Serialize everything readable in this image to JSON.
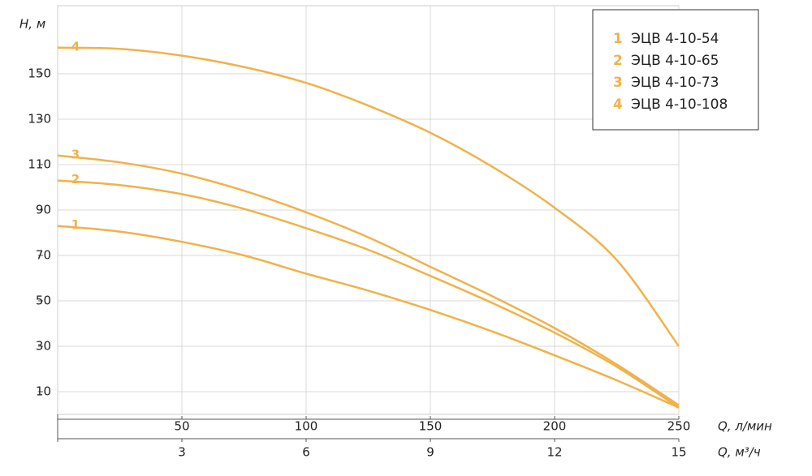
{
  "chart_data": {
    "type": "line",
    "y_label": "H, м",
    "x_label": "Q, л/мин",
    "x2_label": "Q, м³/ч",
    "x": [
      0,
      25,
      50,
      75,
      100,
      125,
      150,
      175,
      200,
      225,
      250
    ],
    "xlim": [
      0,
      250
    ],
    "xticks": [
      50,
      100,
      150,
      200,
      250
    ],
    "x2lim": [
      0,
      15
    ],
    "x2ticks": [
      3,
      6,
      9,
      12,
      15
    ],
    "ylim": [
      0,
      180
    ],
    "yticks": [
      10,
      30,
      50,
      70,
      90,
      110,
      130,
      150
    ],
    "grid": true,
    "legend": "upper right",
    "series": [
      {
        "label": "1",
        "name": "ЭЦВ 4-10-54",
        "color": "#f0b24a",
        "values": [
          83,
          80.5,
          76,
          70,
          62,
          54.5,
          46,
          36.5,
          26,
          15,
          3
        ]
      },
      {
        "label": "2",
        "name": "ЭЦВ 4-10-65",
        "color": "#f0b24a",
        "values": [
          103,
          101,
          97,
          90.5,
          82,
          72.5,
          61,
          49,
          36,
          21,
          3
        ]
      },
      {
        "label": "3",
        "name": "ЭЦВ 4-10-73",
        "color": "#f0b24a",
        "values": [
          114,
          111,
          106,
          98.5,
          89,
          78,
          65,
          52,
          38,
          22,
          4
        ]
      },
      {
        "label": "4",
        "name": "ЭЦВ 4-10-108",
        "color": "#f0b24a",
        "values": [
          161.5,
          161,
          158,
          153,
          146,
          136,
          124,
          109,
          91,
          68,
          30
        ]
      }
    ]
  }
}
